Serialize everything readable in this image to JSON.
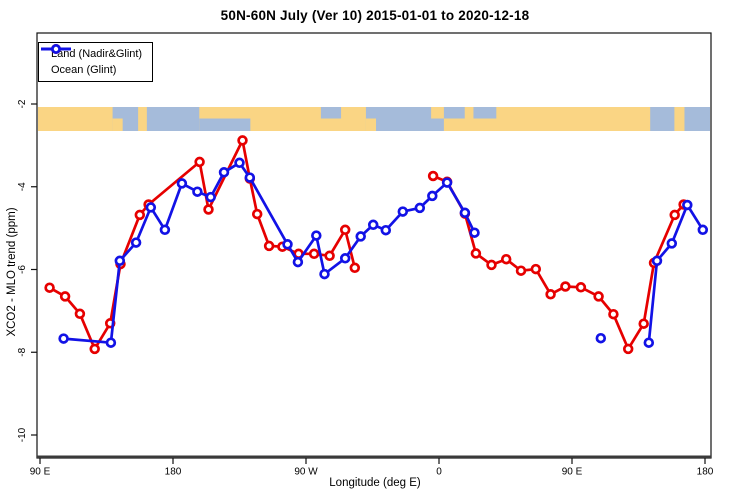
{
  "title": "50N-60N July (Ver 10)   2015-01-01 to 2020-12-18",
  "legend": {
    "items": [
      {
        "label": "Land (Nadir&Glint)",
        "color": "#E60000"
      },
      {
        "label": "Ocean (Glint)",
        "color": "#1212E6"
      }
    ]
  },
  "chart_data": {
    "type": "line",
    "title": "50N-60N July (Ver 10)   2015-01-01 to 2020-12-18",
    "xlabel": "Longitude (deg E)",
    "ylabel": "XCO2 - MLO trend (ppm)",
    "grid": false,
    "legend_position": "top-left",
    "x_axis": {
      "note": "longitude unwrapped eastward, 90E -> 180 -> 90W -> 0 -> 90E -> 180",
      "range": [
        90,
        540
      ],
      "ticks": [
        {
          "value": 90,
          "label": "90 E"
        },
        {
          "value": 180,
          "label": "180"
        },
        {
          "value": 270,
          "label": "90 W"
        },
        {
          "value": 360,
          "label": "0"
        },
        {
          "value": 450,
          "label": "90 E"
        },
        {
          "value": 540,
          "label": "180"
        }
      ]
    },
    "y_axis": {
      "range": [
        -10.6,
        -0.3
      ],
      "ticks": [
        -2,
        -4,
        -6,
        -8,
        -10
      ]
    },
    "series": [
      {
        "name": "Land (Nadir&Glint)",
        "color": "#E60000",
        "marker": "open-circle",
        "segments": [
          [
            [
              96.5,
              -6.44
            ],
            [
              107,
              -6.65
            ],
            [
              117,
              -7.07
            ],
            [
              127,
              -7.92
            ],
            [
              137.5,
              -7.3
            ],
            [
              144.5,
              -5.87
            ],
            [
              157.5,
              -4.68
            ],
            [
              163.5,
              -4.43
            ],
            [
              198,
              -3.4
            ],
            [
              204,
              -4.55
            ],
            [
              227,
              -2.88
            ],
            [
              232,
              -3.8
            ],
            [
              237,
              -4.66
            ],
            [
              245,
              -5.43
            ],
            [
              254,
              -5.45
            ],
            [
              265,
              -5.62
            ],
            [
              275.5,
              -5.62
            ],
            [
              286,
              -5.67
            ],
            [
              296.5,
              -5.04
            ],
            [
              303,
              -5.96
            ]
          ],
          [
            [
              356,
              -3.74
            ],
            [
              365.5,
              -3.88
            ],
            [
              377.5,
              -4.65
            ],
            [
              385,
              -5.61
            ],
            [
              395.5,
              -5.89
            ],
            [
              405.5,
              -5.75
            ],
            [
              415.5,
              -6.03
            ],
            [
              425.5,
              -5.99
            ],
            [
              435.5,
              -6.6
            ],
            [
              445.5,
              -6.41
            ],
            [
              456,
              -6.43
            ],
            [
              468,
              -6.65
            ],
            [
              478,
              -7.08
            ],
            [
              488,
              -7.92
            ],
            [
              498.5,
              -7.31
            ],
            [
              505.5,
              -5.84
            ],
            [
              519.5,
              -4.68
            ],
            [
              525.5,
              -4.43
            ]
          ]
        ]
      },
      {
        "name": "Ocean (Glint)",
        "color": "#1212E6",
        "marker": "open-circle",
        "segments": [
          [
            [
              106,
              -7.67
            ],
            [
              138,
              -7.77
            ],
            [
              144,
              -5.79
            ],
            [
              155,
              -5.35
            ],
            [
              165,
              -4.5
            ],
            [
              174.5,
              -5.04
            ],
            [
              186,
              -3.92
            ],
            [
              196.5,
              -4.12
            ],
            [
              205.5,
              -4.25
            ],
            [
              214.5,
              -3.65
            ],
            [
              225,
              -3.42
            ],
            [
              232,
              -3.78
            ],
            [
              257.5,
              -5.39
            ],
            [
              264.5,
              -5.82
            ],
            [
              277,
              -5.18
            ],
            [
              282.5,
              -6.11
            ],
            [
              296.5,
              -5.73
            ],
            [
              307,
              -5.2
            ],
            [
              315.5,
              -4.92
            ],
            [
              324,
              -5.05
            ],
            [
              335.5,
              -4.6
            ],
            [
              347,
              -4.51
            ],
            [
              355.5,
              -4.22
            ],
            [
              365.5,
              -3.9
            ],
            [
              377.5,
              -4.63
            ],
            [
              384,
              -5.11
            ]
          ],
          [
            [
              469.5,
              -7.66
            ]
          ],
          [
            [
              502,
              -7.77
            ],
            [
              507.5,
              -5.79
            ],
            [
              517.5,
              -5.37
            ],
            [
              528,
              -4.44
            ],
            [
              538.5,
              -5.04
            ]
          ]
        ]
      }
    ],
    "map_strip": {
      "description": "50N-60N land/ocean band across top of plot",
      "land_color": "#FAD584",
      "ocean_color": "#A5BBDA",
      "ocean_segments": [
        {
          "f0": 0.111,
          "f1": 0.149,
          "part": "full"
        },
        {
          "f0": 0.162,
          "f1": 0.24,
          "part": "full"
        },
        {
          "f0": 0.24,
          "f1": 0.316,
          "part": "bottom"
        },
        {
          "f0": 0.421,
          "f1": 0.451,
          "part": "top"
        },
        {
          "f0": 0.488,
          "f1": 0.604,
          "part": "full"
        },
        {
          "f0": 0.604,
          "f1": 0.635,
          "part": "top"
        },
        {
          "f0": 0.648,
          "f1": 0.682,
          "part": "top"
        },
        {
          "f0": 0.911,
          "f1": 0.947,
          "part": "full"
        },
        {
          "f0": 0.962,
          "f1": 1.0,
          "part": "full"
        }
      ],
      "land_patches": [
        {
          "f0": 0.111,
          "f1": 0.126,
          "part": "bottom"
        },
        {
          "f0": 0.488,
          "f1": 0.503,
          "part": "bottom"
        },
        {
          "f0": 0.585,
          "f1": 0.604,
          "part": "top"
        }
      ]
    }
  }
}
